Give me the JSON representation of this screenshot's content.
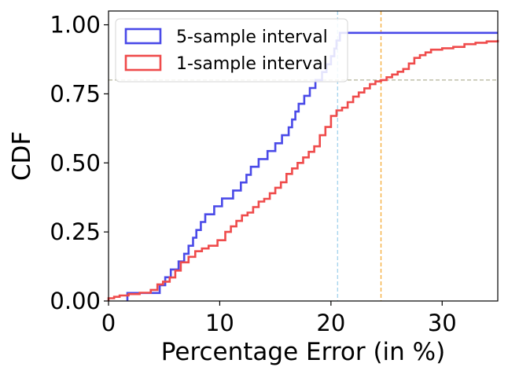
{
  "chart_data": {
    "type": "line",
    "step": true,
    "xlabel": "Percentage Error (in %)",
    "ylabel": "CDF",
    "xlim": [
      0,
      35
    ],
    "ylim": [
      0,
      1.05
    ],
    "xticks": [
      0,
      10,
      20,
      30
    ],
    "xtick_labels": [
      "0",
      "10",
      "20",
      "30"
    ],
    "yticks": [
      0,
      0.25,
      0.5,
      0.75,
      1.0
    ],
    "ytick_labels": [
      "0.00",
      "0.25",
      "0.50",
      "0.75",
      "1.00"
    ],
    "grid": false,
    "legend_position": "top-left",
    "series": [
      {
        "name": "5-sample interval",
        "color": "#4a4ae8",
        "x": [
          1.7,
          4.6,
          5.1,
          5.6,
          6.3,
          6.8,
          7.2,
          7.6,
          7.9,
          8.3,
          8.7,
          9.5,
          10.2,
          11.2,
          11.9,
          12.4,
          12.8,
          13.5,
          14.3,
          15.0,
          15.6,
          16.2,
          16.5,
          16.8,
          17.1,
          17.6,
          18.1,
          18.6,
          19.2,
          19.6,
          20.0,
          20.3,
          20.5,
          20.8,
          21.3,
          21.8,
          22.6,
          24.3,
          28.4,
          35.0
        ],
        "y": [
          0.029,
          0.057,
          0.086,
          0.114,
          0.143,
          0.171,
          0.2,
          0.229,
          0.257,
          0.286,
          0.314,
          0.343,
          0.371,
          0.4,
          0.429,
          0.457,
          0.486,
          0.514,
          0.543,
          0.571,
          0.6,
          0.629,
          0.657,
          0.686,
          0.714,
          0.743,
          0.771,
          0.8,
          0.829,
          0.857,
          0.886,
          0.914,
          0.943,
          0.971,
          0.971,
          0.971,
          0.971,
          0.971,
          0.971,
          0.971
        ],
        "ecdf_y": [
          0.029,
          0.029,
          0.057,
          0.086,
          0.114,
          0.143,
          0.171,
          0.2,
          0.229,
          0.257,
          0.286,
          0.286,
          0.314,
          0.343,
          0.371,
          0.4,
          0.429,
          0.457,
          0.457,
          0.486,
          0.514,
          0.543,
          0.571,
          0.6,
          0.629,
          0.629,
          0.657,
          0.686,
          0.714,
          0.743,
          0.771,
          0.8,
          0.829,
          0.857,
          0.886,
          0.886,
          0.914,
          0.943,
          0.971,
          0.971
        ]
      },
      {
        "name": "1-sample interval",
        "color": "#ef4b4b",
        "x": [
          0,
          0.5,
          1.0,
          1.8,
          2.8,
          3.8,
          4.4,
          4.9,
          5.5,
          6.0,
          6.5,
          7.2,
          7.8,
          8.4,
          9.0,
          9.8,
          10.5,
          11.0,
          11.5,
          12.0,
          12.5,
          13.0,
          13.5,
          14.0,
          14.5,
          15.0,
          15.5,
          16.0,
          16.5,
          17.0,
          17.5,
          18.0,
          18.5,
          19.0,
          19.5,
          20.0,
          20.5,
          21.0,
          21.5,
          22.0,
          22.5,
          23.0,
          23.5,
          24.0,
          24.5,
          25.0,
          25.5,
          26.0,
          26.5,
          27.0,
          27.5,
          28.0,
          28.5,
          29.0,
          30.0,
          31.0,
          32.0,
          33.0,
          34.0,
          35.0
        ],
        "y": [
          0.01,
          0.015,
          0.02,
          0.025,
          0.03,
          0.04,
          0.06,
          0.07,
          0.085,
          0.11,
          0.14,
          0.16,
          0.18,
          0.19,
          0.2,
          0.22,
          0.25,
          0.27,
          0.29,
          0.31,
          0.32,
          0.34,
          0.36,
          0.37,
          0.39,
          0.41,
          0.43,
          0.46,
          0.48,
          0.5,
          0.52,
          0.54,
          0.56,
          0.6,
          0.63,
          0.67,
          0.69,
          0.7,
          0.72,
          0.74,
          0.755,
          0.77,
          0.785,
          0.795,
          0.8,
          0.81,
          0.82,
          0.83,
          0.84,
          0.86,
          0.88,
          0.89,
          0.9,
          0.91,
          0.915,
          0.92,
          0.93,
          0.935,
          0.94,
          0.945
        ]
      }
    ],
    "reference_lines": [
      {
        "orientation": "vertical",
        "value": 20.6,
        "color": "#a8d4ee"
      },
      {
        "orientation": "vertical",
        "value": 24.5,
        "color": "#f5b041"
      },
      {
        "orientation": "horizontal",
        "value": 0.8,
        "color": "#b9b9a0"
      }
    ]
  }
}
